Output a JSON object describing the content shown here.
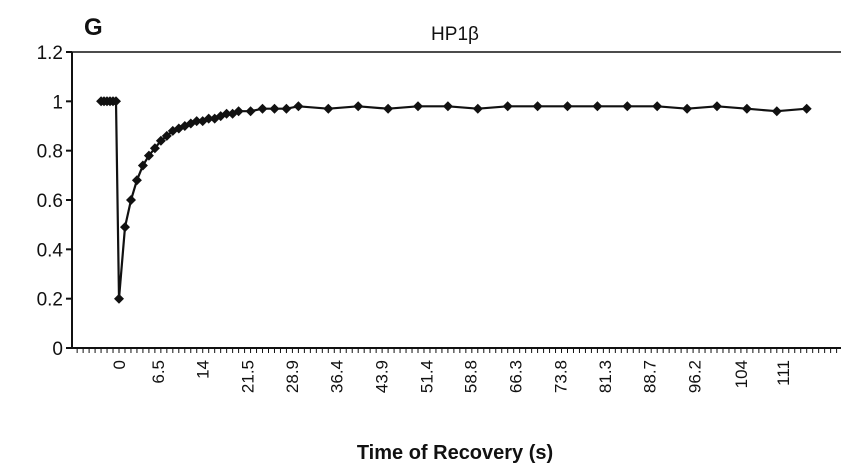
{
  "panel_label": "G",
  "chart_data": {
    "type": "line",
    "title": "HP1β",
    "xlabel": "Time of Recovery (s)",
    "ylabel": "",
    "ylim": [
      0,
      1.2
    ],
    "yticks": [
      "0",
      "0.2",
      "0.4",
      "0.6",
      "0.8",
      "1",
      "1.2"
    ],
    "xtick_labels": [
      "0",
      "6.5",
      "14",
      "21.5",
      "28.9",
      "36.4",
      "43.9",
      "51.4",
      "58.8",
      "66.3",
      "73.8",
      "81.3",
      "88.7",
      "96.2",
      "104",
      "111"
    ],
    "grid": false,
    "legend": "none",
    "marker": "diamond",
    "color": "#111111",
    "series": [
      {
        "x": [
          -3,
          -2.5,
          -2,
          -1.5,
          -1,
          -0.5,
          0,
          1,
          2,
          3,
          4,
          5,
          6,
          7,
          8,
          9,
          10,
          11,
          12,
          13,
          14,
          15,
          16,
          17,
          18,
          19,
          20,
          22,
          24,
          26,
          28,
          30,
          35,
          40,
          45,
          50,
          55,
          60,
          65,
          70,
          75,
          80,
          85,
          90,
          95,
          100,
          105,
          110,
          115
        ],
        "values": [
          1.0,
          1.0,
          1.0,
          1.0,
          1.0,
          1.0,
          0.2,
          0.49,
          0.6,
          0.68,
          0.74,
          0.78,
          0.81,
          0.84,
          0.86,
          0.88,
          0.89,
          0.9,
          0.91,
          0.92,
          0.92,
          0.93,
          0.93,
          0.94,
          0.95,
          0.95,
          0.96,
          0.96,
          0.97,
          0.97,
          0.97,
          0.98,
          0.97,
          0.98,
          0.97,
          0.98,
          0.98,
          0.97,
          0.98,
          0.98,
          0.98,
          0.98,
          0.98,
          0.98,
          0.97,
          0.98,
          0.97,
          0.96,
          0.97
        ]
      }
    ]
  }
}
